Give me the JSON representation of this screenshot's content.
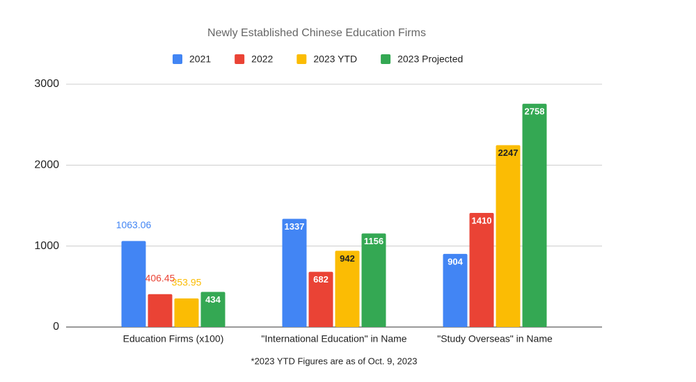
{
  "chart_data": {
    "type": "bar",
    "title": "Newly Established Chinese Education Firms",
    "categories": [
      "Education Firms (x100)",
      "\"International Education\" in Name",
      "\"Study Overseas\" in Name"
    ],
    "series": [
      {
        "name": "2021",
        "color": "#4285f4",
        "values": [
          1063.06,
          1337,
          904
        ]
      },
      {
        "name": "2022",
        "color": "#ea4335",
        "values": [
          406.45,
          682,
          1410
        ]
      },
      {
        "name": "2023 YTD",
        "color": "#fbbc04",
        "values": [
          353.95,
          942,
          2247
        ]
      },
      {
        "name": "2023 Projected",
        "color": "#34a853",
        "values": [
          434,
          1156,
          2758
        ]
      }
    ],
    "ylim": [
      0,
      3000
    ],
    "yticks": [
      0,
      1000,
      2000,
      3000
    ],
    "grid": true,
    "legend": "top",
    "annotation": "*2023 YTD Figures are as of Oct. 9, 2023"
  }
}
